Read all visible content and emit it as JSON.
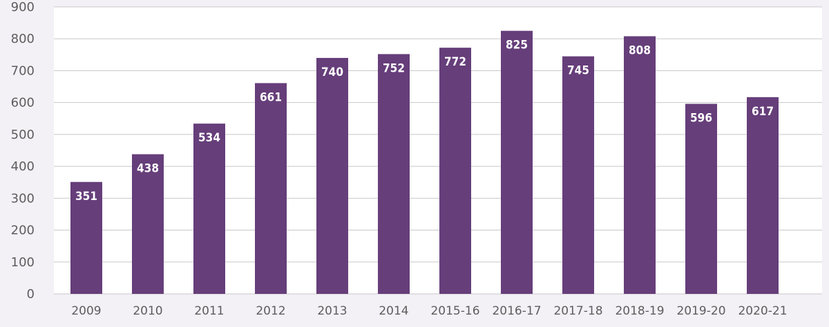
{
  "colors": {
    "background": "#f3f0f6",
    "plot_background": "#ffffff",
    "bar": "#663e7a",
    "grid": "#c8c8c8",
    "axis_text": "#5d5d5d",
    "data_label": "#ffffff"
  },
  "chart_data": {
    "type": "bar",
    "title": "",
    "xlabel": "",
    "ylabel": "",
    "categories": [
      "2009",
      "2010",
      "2011",
      "2012",
      "2013",
      "2014",
      "2015-16",
      "2016-17",
      "2017-18",
      "2018-19",
      "2019-20",
      "2020-21"
    ],
    "values": [
      351,
      438,
      534,
      661,
      740,
      752,
      772,
      825,
      745,
      808,
      596,
      617
    ],
    "value_labels": [
      "351",
      "438",
      "534",
      "661",
      "740",
      "752",
      "772",
      "825",
      "745",
      "808",
      "596",
      "617"
    ],
    "ylim": [
      0,
      900
    ],
    "yticks": [
      0,
      100,
      200,
      300,
      400,
      500,
      600,
      700,
      800,
      900
    ],
    "ytick_labels": [
      "0",
      "100",
      "200",
      "300",
      "400",
      "500",
      "600",
      "700",
      "800",
      "900"
    ],
    "grid": true,
    "legend": "none"
  }
}
